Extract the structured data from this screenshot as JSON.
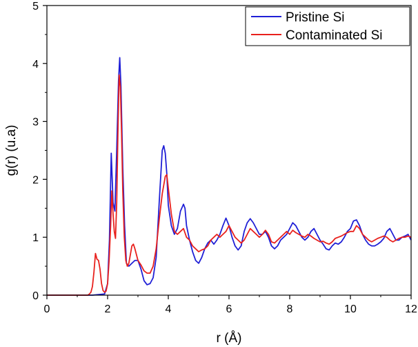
{
  "chart_data": {
    "type": "line",
    "title": "",
    "xlabel": "r (Å)",
    "ylabel": "g(r) (u.a)",
    "xlim": [
      0,
      12
    ],
    "ylim": [
      0,
      5
    ],
    "xticks": [
      0,
      2,
      4,
      6,
      8,
      10,
      12
    ],
    "yticks": [
      0,
      1,
      2,
      3,
      4,
      5
    ],
    "xtick_labels": [
      "0",
      "2",
      "4",
      "6",
      "8",
      "10",
      "12"
    ],
    "ytick_labels": [
      "0",
      "1",
      "2",
      "3",
      "4",
      "5"
    ],
    "legend_position": "top-right",
    "series": [
      {
        "name": "Pristine Si",
        "color": "#1f1fd6",
        "points": [
          [
            0,
            0
          ],
          [
            1.5,
            0
          ],
          [
            1.7,
            0.01
          ],
          [
            1.9,
            0.02
          ],
          [
            2.0,
            0.2
          ],
          [
            2.06,
            0.95
          ],
          [
            2.12,
            2.45
          ],
          [
            2.18,
            1.6
          ],
          [
            2.24,
            1.45
          ],
          [
            2.3,
            2.5
          ],
          [
            2.36,
            3.7
          ],
          [
            2.4,
            4.1
          ],
          [
            2.44,
            3.6
          ],
          [
            2.5,
            2.2
          ],
          [
            2.56,
            1.2
          ],
          [
            2.62,
            0.55
          ],
          [
            2.7,
            0.5
          ],
          [
            2.8,
            0.55
          ],
          [
            2.9,
            0.6
          ],
          [
            3.0,
            0.6
          ],
          [
            3.1,
            0.45
          ],
          [
            3.2,
            0.25
          ],
          [
            3.3,
            0.18
          ],
          [
            3.4,
            0.2
          ],
          [
            3.5,
            0.3
          ],
          [
            3.6,
            0.65
          ],
          [
            3.7,
            1.6
          ],
          [
            3.8,
            2.5
          ],
          [
            3.85,
            2.58
          ],
          [
            3.9,
            2.45
          ],
          [
            3.95,
            2.1
          ],
          [
            4.0,
            1.55
          ],
          [
            4.1,
            1.2
          ],
          [
            4.2,
            1.05
          ],
          [
            4.3,
            1.15
          ],
          [
            4.4,
            1.45
          ],
          [
            4.5,
            1.57
          ],
          [
            4.55,
            1.5
          ],
          [
            4.6,
            1.2
          ],
          [
            4.7,
            0.95
          ],
          [
            4.8,
            0.75
          ],
          [
            4.9,
            0.6
          ],
          [
            5.0,
            0.55
          ],
          [
            5.1,
            0.65
          ],
          [
            5.2,
            0.8
          ],
          [
            5.3,
            0.9
          ],
          [
            5.4,
            0.95
          ],
          [
            5.5,
            0.88
          ],
          [
            5.6,
            0.95
          ],
          [
            5.7,
            1.05
          ],
          [
            5.8,
            1.2
          ],
          [
            5.9,
            1.33
          ],
          [
            6.0,
            1.2
          ],
          [
            6.1,
            1.0
          ],
          [
            6.2,
            0.85
          ],
          [
            6.3,
            0.78
          ],
          [
            6.4,
            0.85
          ],
          [
            6.5,
            1.1
          ],
          [
            6.6,
            1.25
          ],
          [
            6.7,
            1.32
          ],
          [
            6.8,
            1.25
          ],
          [
            6.9,
            1.15
          ],
          [
            7.0,
            1.05
          ],
          [
            7.1,
            1.05
          ],
          [
            7.2,
            1.1
          ],
          [
            7.3,
            1.0
          ],
          [
            7.4,
            0.85
          ],
          [
            7.5,
            0.8
          ],
          [
            7.6,
            0.85
          ],
          [
            7.7,
            0.95
          ],
          [
            7.8,
            1.0
          ],
          [
            7.9,
            1.05
          ],
          [
            8.0,
            1.15
          ],
          [
            8.1,
            1.25
          ],
          [
            8.2,
            1.2
          ],
          [
            8.3,
            1.1
          ],
          [
            8.4,
            1.0
          ],
          [
            8.5,
            0.95
          ],
          [
            8.6,
            1.0
          ],
          [
            8.7,
            1.1
          ],
          [
            8.8,
            1.15
          ],
          [
            8.9,
            1.05
          ],
          [
            9.0,
            0.95
          ],
          [
            9.1,
            0.88
          ],
          [
            9.2,
            0.8
          ],
          [
            9.3,
            0.78
          ],
          [
            9.4,
            0.85
          ],
          [
            9.5,
            0.9
          ],
          [
            9.6,
            0.88
          ],
          [
            9.7,
            0.92
          ],
          [
            9.8,
            1.0
          ],
          [
            9.9,
            1.1
          ],
          [
            10.0,
            1.15
          ],
          [
            10.1,
            1.28
          ],
          [
            10.2,
            1.3
          ],
          [
            10.3,
            1.2
          ],
          [
            10.4,
            1.05
          ],
          [
            10.5,
            0.95
          ],
          [
            10.6,
            0.88
          ],
          [
            10.7,
            0.85
          ],
          [
            10.8,
            0.85
          ],
          [
            10.9,
            0.88
          ],
          [
            11.0,
            0.92
          ],
          [
            11.1,
            0.98
          ],
          [
            11.2,
            1.1
          ],
          [
            11.3,
            1.15
          ],
          [
            11.4,
            1.05
          ],
          [
            11.5,
            0.95
          ],
          [
            11.6,
            0.95
          ],
          [
            11.7,
            1.0
          ],
          [
            11.8,
            1.02
          ],
          [
            11.9,
            1.05
          ],
          [
            12.0,
            0.95
          ]
        ]
      },
      {
        "name": "Contaminated Si",
        "color": "#e8201c",
        "points": [
          [
            0,
            0
          ],
          [
            1.35,
            0
          ],
          [
            1.4,
            0.02
          ],
          [
            1.45,
            0.05
          ],
          [
            1.5,
            0.15
          ],
          [
            1.55,
            0.4
          ],
          [
            1.6,
            0.72
          ],
          [
            1.65,
            0.62
          ],
          [
            1.7,
            0.6
          ],
          [
            1.75,
            0.45
          ],
          [
            1.8,
            0.2
          ],
          [
            1.85,
            0.08
          ],
          [
            1.9,
            0.05
          ],
          [
            1.95,
            0.07
          ],
          [
            2.0,
            0.2
          ],
          [
            2.05,
            0.6
          ],
          [
            2.1,
            1.2
          ],
          [
            2.14,
            1.8
          ],
          [
            2.18,
            1.4
          ],
          [
            2.22,
            1.1
          ],
          [
            2.26,
            0.98
          ],
          [
            2.3,
            1.6
          ],
          [
            2.34,
            2.8
          ],
          [
            2.38,
            3.8
          ],
          [
            2.42,
            3.6
          ],
          [
            2.46,
            2.8
          ],
          [
            2.5,
            1.8
          ],
          [
            2.55,
            1.0
          ],
          [
            2.6,
            0.6
          ],
          [
            2.65,
            0.5
          ],
          [
            2.7,
            0.55
          ],
          [
            2.75,
            0.7
          ],
          [
            2.8,
            0.85
          ],
          [
            2.85,
            0.88
          ],
          [
            2.9,
            0.8
          ],
          [
            2.95,
            0.7
          ],
          [
            3.0,
            0.6
          ],
          [
            3.1,
            0.52
          ],
          [
            3.2,
            0.42
          ],
          [
            3.3,
            0.38
          ],
          [
            3.4,
            0.38
          ],
          [
            3.5,
            0.5
          ],
          [
            3.6,
            0.8
          ],
          [
            3.7,
            1.3
          ],
          [
            3.8,
            1.75
          ],
          [
            3.9,
            2.05
          ],
          [
            3.95,
            2.08
          ],
          [
            4.0,
            1.85
          ],
          [
            4.1,
            1.4
          ],
          [
            4.2,
            1.1
          ],
          [
            4.3,
            1.05
          ],
          [
            4.4,
            1.1
          ],
          [
            4.5,
            1.15
          ],
          [
            4.6,
            1.0
          ],
          [
            4.7,
            0.95
          ],
          [
            4.8,
            0.85
          ],
          [
            4.9,
            0.8
          ],
          [
            5.0,
            0.75
          ],
          [
            5.1,
            0.78
          ],
          [
            5.2,
            0.8
          ],
          [
            5.3,
            0.85
          ],
          [
            5.4,
            0.95
          ],
          [
            5.5,
            1.0
          ],
          [
            5.6,
            1.05
          ],
          [
            5.7,
            1.0
          ],
          [
            5.8,
            1.05
          ],
          [
            5.9,
            1.1
          ],
          [
            6.0,
            1.2
          ],
          [
            6.1,
            1.1
          ],
          [
            6.2,
            1.0
          ],
          [
            6.3,
            0.95
          ],
          [
            6.4,
            0.9
          ],
          [
            6.5,
            0.95
          ],
          [
            6.6,
            1.05
          ],
          [
            6.7,
            1.15
          ],
          [
            6.8,
            1.1
          ],
          [
            6.9,
            1.05
          ],
          [
            7.0,
            1.0
          ],
          [
            7.1,
            1.05
          ],
          [
            7.2,
            1.12
          ],
          [
            7.3,
            1.05
          ],
          [
            7.4,
            0.92
          ],
          [
            7.5,
            0.9
          ],
          [
            7.6,
            0.95
          ],
          [
            7.7,
            1.0
          ],
          [
            7.8,
            1.05
          ],
          [
            7.9,
            1.1
          ],
          [
            8.0,
            1.05
          ],
          [
            8.1,
            1.12
          ],
          [
            8.2,
            1.08
          ],
          [
            8.3,
            1.05
          ],
          [
            8.4,
            1.02
          ],
          [
            8.5,
            1.0
          ],
          [
            8.6,
            1.05
          ],
          [
            8.7,
            1.02
          ],
          [
            8.8,
            0.98
          ],
          [
            8.9,
            0.95
          ],
          [
            9.0,
            0.92
          ],
          [
            9.1,
            0.93
          ],
          [
            9.2,
            0.9
          ],
          [
            9.3,
            0.88
          ],
          [
            9.4,
            0.92
          ],
          [
            9.5,
            0.98
          ],
          [
            9.6,
            1.0
          ],
          [
            9.7,
            1.02
          ],
          [
            9.8,
            1.05
          ],
          [
            9.9,
            1.08
          ],
          [
            10.0,
            1.1
          ],
          [
            10.1,
            1.1
          ],
          [
            10.2,
            1.2
          ],
          [
            10.3,
            1.15
          ],
          [
            10.4,
            1.05
          ],
          [
            10.5,
            1.0
          ],
          [
            10.6,
            0.95
          ],
          [
            10.7,
            0.92
          ],
          [
            10.8,
            0.95
          ],
          [
            10.9,
            0.98
          ],
          [
            11.0,
            1.0
          ],
          [
            11.1,
            1.02
          ],
          [
            11.2,
            1.0
          ],
          [
            11.3,
            0.95
          ],
          [
            11.4,
            0.92
          ],
          [
            11.5,
            0.95
          ],
          [
            11.6,
            0.98
          ],
          [
            11.7,
            1.0
          ],
          [
            11.8,
            1.0
          ],
          [
            11.9,
            1.02
          ],
          [
            12.0,
            1.0
          ]
        ]
      }
    ]
  }
}
